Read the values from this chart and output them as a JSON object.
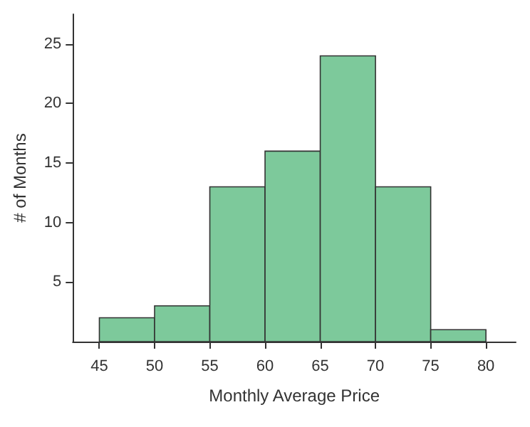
{
  "chart_data": {
    "type": "histogram",
    "xlabel": "Monthly Average Price",
    "ylabel": "# of Months",
    "bins": [
      45,
      50,
      55,
      60,
      65,
      70,
      75,
      80
    ],
    "values": [
      2,
      3,
      13,
      16,
      24,
      13,
      1
    ],
    "color": "#7dc99b",
    "xlim": [
      42.6,
      82.7
    ],
    "xticks": [
      45,
      50,
      55,
      60,
      65,
      70,
      75,
      80
    ],
    "ylim": [
      0,
      27.5
    ],
    "yticks": [
      5,
      10,
      15,
      20,
      25
    ],
    "grid": false
  }
}
